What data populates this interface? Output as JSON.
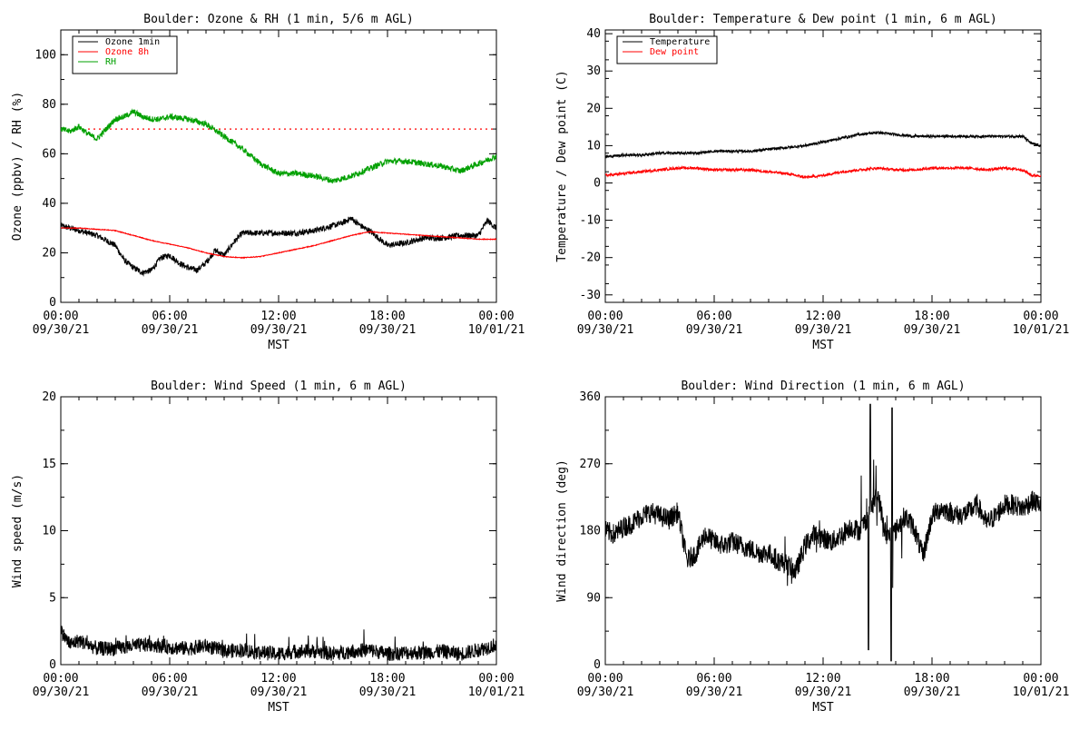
{
  "chart_data": [
    {
      "id": "ozone_rh",
      "type": "line",
      "title": "Boulder: Ozone & RH (1 min, 5/6 m AGL)",
      "xlabel": "MST",
      "ylabel": "Ozone (ppbv) / RH (%)",
      "xlim": [
        0,
        24
      ],
      "ylim": [
        0,
        110
      ],
      "yticks": [
        0,
        20,
        40,
        60,
        80,
        100
      ],
      "legend": "top-left",
      "series": [
        {
          "name": "Ozone 1min",
          "color": "#000000",
          "x": [
            0,
            1,
            2,
            3,
            3.5,
            4,
            4.5,
            5,
            5.5,
            6,
            6.5,
            7,
            7.5,
            8,
            8.5,
            9,
            9.5,
            10,
            11,
            12,
            13,
            14,
            15,
            15.5,
            16,
            16.5,
            17,
            18,
            19,
            20,
            21,
            22,
            23,
            23.5,
            24
          ],
          "y": [
            31,
            29,
            27,
            23,
            17,
            14,
            12,
            13,
            18,
            19,
            16,
            14,
            13,
            16,
            21,
            19,
            24,
            28,
            28,
            28,
            28,
            29,
            31,
            32,
            34,
            31,
            29,
            23,
            24,
            26,
            26,
            27,
            27,
            33,
            30
          ]
        },
        {
          "name": "Ozone 8h",
          "color": "#ff0000",
          "x": [
            0,
            1,
            2,
            3,
            4,
            5,
            6,
            7,
            8,
            9,
            10,
            11,
            12,
            13,
            14,
            15,
            16,
            17,
            18,
            19,
            20,
            21,
            22,
            23,
            24
          ],
          "y": [
            30,
            30,
            29.5,
            29,
            27,
            25,
            23.5,
            22,
            20,
            18.5,
            18,
            18.5,
            20,
            21.5,
            23,
            25,
            27,
            28.5,
            28,
            27.5,
            27,
            26.5,
            26,
            25.5,
            25.5
          ]
        },
        {
          "name": "RH",
          "color": "#00a000",
          "x": [
            0,
            0.5,
            1,
            1.5,
            2,
            2.5,
            3,
            3.5,
            4,
            4.5,
            5,
            5.5,
            6,
            7,
            8,
            9,
            10,
            11,
            12,
            13,
            14,
            14.5,
            15,
            16,
            17,
            18,
            19,
            20,
            21,
            22,
            23,
            24
          ],
          "y": [
            70,
            69,
            71,
            68,
            66,
            70,
            74,
            75,
            77,
            75,
            74,
            74,
            75,
            74,
            72,
            67,
            62,
            56,
            52,
            52,
            51,
            50,
            49,
            51,
            54,
            57,
            57,
            56,
            55,
            53,
            56,
            59
          ]
        }
      ],
      "reference_lines": [
        {
          "y": 70,
          "color": "#ff0000",
          "style": "dotted",
          "x_from": 1.5,
          "x_to": 24
        }
      ]
    },
    {
      "id": "temp_dew",
      "type": "line",
      "title": "Boulder: Temperature & Dew point (1 min, 6 m AGL)",
      "xlabel": "MST",
      "ylabel": "Temperature / Dew point (C)",
      "xlim": [
        0,
        24
      ],
      "ylim": [
        -32,
        41
      ],
      "yticks": [
        -30,
        -20,
        -10,
        0,
        10,
        20,
        30,
        40
      ],
      "legend": "top-left",
      "series": [
        {
          "name": "Temperature",
          "color": "#000000",
          "x": [
            0,
            1,
            2,
            3,
            4,
            5,
            6,
            7,
            8,
            9,
            10,
            11,
            12,
            13,
            13.5,
            14,
            15,
            16,
            17,
            18,
            19,
            20,
            21,
            22,
            23,
            23.5,
            24
          ],
          "y": [
            7,
            7.5,
            7.5,
            8,
            8,
            8,
            8.5,
            8.5,
            8.5,
            9,
            9.5,
            10,
            11,
            12,
            12.5,
            13,
            13.5,
            13,
            12.5,
            12.5,
            12.5,
            12.5,
            12.5,
            12.5,
            12.5,
            10.5,
            10
          ]
        },
        {
          "name": "Dew point",
          "color": "#ff0000",
          "x": [
            0,
            1,
            2,
            3,
            4,
            5,
            6,
            7,
            8,
            9,
            10,
            11,
            12,
            13,
            14,
            15,
            16,
            17,
            18,
            19,
            20,
            21,
            22,
            23,
            23.5,
            24
          ],
          "y": [
            2,
            2.5,
            3,
            3.5,
            4,
            4,
            3.5,
            3.5,
            3.5,
            3,
            2.5,
            1.5,
            2,
            3,
            3.5,
            4,
            3.5,
            3.5,
            4,
            4,
            4,
            3.5,
            4,
            3.5,
            2,
            2
          ]
        }
      ]
    },
    {
      "id": "wind_speed",
      "type": "line",
      "title": "Boulder: Wind Speed (1 min, 6 m AGL)",
      "xlabel": "MST",
      "ylabel": "Wind speed (m/s)",
      "xlim": [
        0,
        24
      ],
      "ylim": [
        0,
        20
      ],
      "yticks": [
        0,
        5,
        10,
        15,
        20
      ],
      "series": [
        {
          "name": "",
          "color": "#000000",
          "x": [
            0,
            0.5,
            1,
            1.5,
            2,
            3,
            4,
            5,
            6,
            7,
            8,
            9,
            10,
            11,
            12,
            13,
            14,
            15,
            16,
            17,
            18,
            19,
            20,
            21,
            22,
            23,
            24
          ],
          "y": [
            2.5,
            1.5,
            1.8,
            1.5,
            1.2,
            1.2,
            1.4,
            1.5,
            1.3,
            1.2,
            1.4,
            1.0,
            1.1,
            0.9,
            0.8,
            1.0,
            1.0,
            0.8,
            1.0,
            1.1,
            0.8,
            0.9,
            0.9,
            1.0,
            0.8,
            1.1,
            1.5
          ]
        }
      ]
    },
    {
      "id": "wind_dir",
      "type": "line",
      "title": "Boulder: Wind Direction (1 min, 6 m AGL)",
      "xlabel": "MST",
      "ylabel": "Wind direction (deg)",
      "xlim": [
        0,
        24
      ],
      "ylim": [
        0,
        360
      ],
      "yticks": [
        0,
        90,
        180,
        270,
        360
      ],
      "series": [
        {
          "name": "",
          "color": "#000000",
          "x": [
            0,
            0.5,
            1,
            1.5,
            2,
            2.5,
            3,
            3.5,
            4,
            4.5,
            5,
            5.5,
            6,
            6.5,
            7,
            7.5,
            8,
            8.5,
            9,
            9.5,
            10,
            10.5,
            11,
            11.5,
            12,
            12.5,
            13,
            13.5,
            14,
            14.5,
            15,
            15.5,
            16,
            16.5,
            17,
            17.5,
            18,
            18.5,
            19,
            19.5,
            20,
            20.5,
            21,
            21.5,
            22,
            22.5,
            23,
            23.5,
            24
          ],
          "y": [
            180,
            175,
            185,
            190,
            200,
            205,
            200,
            195,
            205,
            140,
            150,
            175,
            165,
            160,
            165,
            160,
            155,
            150,
            150,
            140,
            135,
            125,
            160,
            175,
            170,
            165,
            175,
            185,
            180,
            200,
            230,
            170,
            180,
            200,
            185,
            145,
            200,
            210,
            205,
            200,
            205,
            215,
            190,
            200,
            215,
            215,
            210,
            220,
            215
          ]
        }
      ]
    }
  ],
  "x_ticks": [
    {
      "time": "00:00",
      "date": "09/30/21"
    },
    {
      "time": "06:00",
      "date": "09/30/21"
    },
    {
      "time": "12:00",
      "date": "09/30/21"
    },
    {
      "time": "18:00",
      "date": "09/30/21"
    },
    {
      "time": "00:00",
      "date": "10/01/21"
    }
  ]
}
